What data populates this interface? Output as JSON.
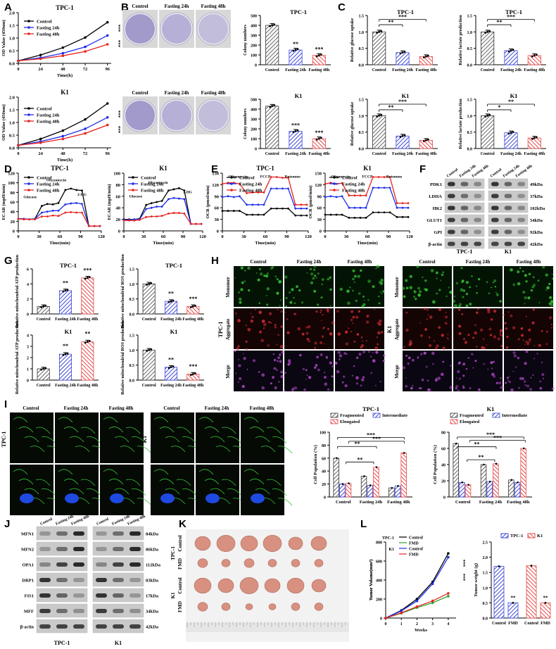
{
  "panels": {
    "A": "A",
    "B": "B",
    "C": "C",
    "D": "D",
    "E": "E",
    "F": "F",
    "G": "G",
    "H": "H",
    "I": "I",
    "J": "J",
    "K": "K",
    "L": "L"
  },
  "groups": [
    "Control",
    "Fasting 24h",
    "Fasting 48h"
  ],
  "cells": [
    "TPC-1",
    "K1"
  ],
  "colors": {
    "control": "#000000",
    "f24": "#1f2ee8",
    "f48": "#e8231f",
    "bar_control": "#9a9a9a",
    "bar_f24": "#3f49d9",
    "bar_f48": "#e64a4a",
    "fmd": "#2aa52a"
  },
  "sig": {
    "s2": "**",
    "s3": "***",
    "s1": "*"
  },
  "a_ylabel": "OD Value (450nm)",
  "a_xlabel": "Time(h)",
  "b_ylabel": "Colony numbers",
  "c_ylabel1": "Relative glucose uptake",
  "c_ylabel2": "Relative lactate production",
  "d_ylabel": "ECAR (mpH/min)",
  "d_xlabel": "Time(min)",
  "d_inj": [
    "Glucose",
    "Olycomycin",
    "2-DG"
  ],
  "d_inj_k1": [
    "Glucose",
    "Olycomycin",
    "2-DG"
  ],
  "e_ylabel": "OCR (pmol/min)",
  "e_xlabel": "Time(min)",
  "e_inj": [
    "Oligomycin",
    "FCCP",
    "Rotenone"
  ],
  "g_ylabel1": "Relative mitochondrial ATP production",
  "g_ylabel2": "Relative mitochondrial ROS production",
  "h_rows": [
    "Monomer",
    "Aggregate",
    "Merge"
  ],
  "i_ylabel": "Cell Population (%)",
  "i_legend": [
    "Fragmented",
    "Intermediate",
    "Elongated"
  ],
  "f_proteins": [
    "PDK1",
    "LDHA",
    "HK2",
    "GLUT1",
    "GPI",
    "β-actin"
  ],
  "f_kda": [
    "49kDa",
    "37kDa",
    "102kDa",
    "54kDa",
    "92kDa",
    "42kDa"
  ],
  "j_proteins": [
    "MFN1",
    "MFN2",
    "OPA1",
    "DRP1",
    "FIS1",
    "MFF",
    "β-actin"
  ],
  "j_kda": [
    "84kDa",
    "86kDa",
    "112kDa",
    "83kDa",
    "17kDa",
    "34kDa",
    "42kDa"
  ],
  "k_labels": {
    "tpc": "TPC-1",
    "k1": "K1",
    "control": "Control",
    "fmd": "FMD"
  },
  "l_legend": {
    "tpc": "TPC-1",
    "k1": "K1",
    "control": "Control",
    "fmd": "FMD"
  },
  "l_ylabel1": "Tumor Volume(mm³)",
  "l_xlabel": "Weeks",
  "l_ylabel2": "Tumor weight (g)",
  "chart_data": [
    {
      "id": "A-TPC1",
      "type": "line",
      "title": "TPC-1",
      "xlabel": "Time(h)",
      "ylabel": "OD Value (450nm)",
      "x": [
        0,
        24,
        48,
        72,
        96
      ],
      "xlim": [
        0,
        100
      ],
      "ylim": [
        0,
        2.0
      ],
      "yticks": [
        0.0,
        0.5,
        1.0,
        1.5,
        2.0
      ],
      "series": [
        {
          "name": "Control",
          "values": [
            0.1,
            0.33,
            0.62,
            1.02,
            1.62
          ]
        },
        {
          "name": "Fasting 24h",
          "values": [
            0.1,
            0.22,
            0.4,
            0.65,
            1.1
          ]
        },
        {
          "name": "Fasting 48h",
          "values": [
            0.1,
            0.18,
            0.3,
            0.47,
            0.75
          ]
        }
      ]
    },
    {
      "id": "A-K1",
      "type": "line",
      "title": "K1",
      "xlabel": "Time(h)",
      "ylabel": "OD Value (450nm)",
      "x": [
        0,
        24,
        48,
        72,
        96
      ],
      "xlim": [
        0,
        100
      ],
      "ylim": [
        0,
        2.0
      ],
      "yticks": [
        0.0,
        0.5,
        1.0,
        1.5,
        2.0
      ],
      "series": [
        {
          "name": "Control",
          "values": [
            0.1,
            0.35,
            0.68,
            1.12,
            1.75
          ]
        },
        {
          "name": "Fasting 24h",
          "values": [
            0.1,
            0.25,
            0.46,
            0.75,
            1.2
          ]
        },
        {
          "name": "Fasting 48h",
          "values": [
            0.1,
            0.2,
            0.35,
            0.57,
            0.9
          ]
        }
      ]
    },
    {
      "id": "B-TPC1",
      "type": "bar",
      "title": "TPC-1",
      "ylabel": "Colony numbers",
      "categories": [
        "Control",
        "Fasting 24h",
        "Fasting 48h"
      ],
      "values": [
        400,
        150,
        95
      ],
      "ylim": [
        0,
        500
      ],
      "yticks": [
        0,
        100,
        200,
        300,
        400,
        500
      ]
    },
    {
      "id": "B-K1",
      "type": "bar",
      "title": "K1",
      "ylabel": "Colony numbers",
      "categories": [
        "Control",
        "Fasting 24h",
        "Fasting 48h"
      ],
      "values": [
        430,
        175,
        100
      ],
      "ylim": [
        0,
        500
      ],
      "yticks": [
        0,
        100,
        200,
        300,
        400,
        500
      ]
    },
    {
      "id": "C-TPC1-glu",
      "type": "bar",
      "title": "TPC-1",
      "ylabel": "Relative glucose uptake",
      "categories": [
        "Control",
        "Fasting 24h",
        "Fasting 48h"
      ],
      "values": [
        1.0,
        0.37,
        0.25
      ],
      "ylim": [
        0,
        1.5
      ],
      "yticks": [
        0.0,
        0.5,
        1.0,
        1.5
      ]
    },
    {
      "id": "C-TPC1-lac",
      "type": "bar",
      "title": "TPC-1",
      "ylabel": "Relative lactate production",
      "categories": [
        "Control",
        "Fasting 24h",
        "Fasting 48h"
      ],
      "values": [
        1.0,
        0.43,
        0.28
      ],
      "ylim": [
        0,
        1.5
      ],
      "yticks": [
        0.0,
        0.5,
        1.0,
        1.5
      ]
    },
    {
      "id": "C-K1-glu",
      "type": "bar",
      "title": "K1",
      "ylabel": "Relative glucose uptake",
      "categories": [
        "Control",
        "Fasting 24h",
        "Fasting 48h"
      ],
      "values": [
        1.0,
        0.38,
        0.25
      ],
      "ylim": [
        0,
        1.5
      ],
      "yticks": [
        0.0,
        0.5,
        1.0,
        1.5
      ]
    },
    {
      "id": "C-K1-lac",
      "type": "bar",
      "title": "K1",
      "ylabel": "Relative lactate production",
      "categories": [
        "Control",
        "Fasting 24h",
        "Fasting 48h"
      ],
      "values": [
        1.0,
        0.48,
        0.32
      ],
      "ylim": [
        0,
        1.5
      ],
      "yticks": [
        0.0,
        0.5,
        1.0,
        1.5
      ]
    },
    {
      "id": "D-TPC1",
      "type": "line",
      "title": "TPC-1",
      "xlabel": "Time(min)",
      "ylabel": "ECAR (mpH/min)",
      "x": [
        0,
        8,
        16,
        24,
        34,
        42,
        50,
        58,
        68,
        76,
        84,
        92,
        102,
        110,
        118
      ],
      "xlim": [
        0,
        120
      ],
      "ylim": [
        0,
        120
      ],
      "yticks": [
        0,
        20,
        40,
        60,
        80,
        100,
        120
      ],
      "series": [
        {
          "name": "Control",
          "values": [
            25,
            25,
            24,
            25,
            52,
            56,
            55,
            58,
            85,
            88,
            85,
            84,
            10,
            10,
            10
          ]
        },
        {
          "name": "Fasting 24h",
          "values": [
            25,
            25,
            24,
            25,
            38,
            40,
            42,
            42,
            55,
            57,
            58,
            56,
            10,
            10,
            10
          ]
        },
        {
          "name": "Fasting 48h",
          "values": [
            25,
            24,
            24,
            24,
            30,
            30,
            32,
            31,
            38,
            39,
            38,
            38,
            10,
            10,
            10
          ]
        }
      ]
    },
    {
      "id": "D-K1",
      "type": "line",
      "title": "K1",
      "xlabel": "Time(min)",
      "ylabel": "ECAR (mpH/min)",
      "x": [
        0,
        8,
        16,
        24,
        34,
        42,
        50,
        58,
        68,
        76,
        84,
        92,
        102,
        110,
        118
      ],
      "xlim": [
        0,
        120
      ],
      "ylim": [
        0,
        100
      ],
      "yticks": [
        0,
        20,
        40,
        60,
        80,
        100
      ],
      "series": [
        {
          "name": "Control",
          "values": [
            20,
            20,
            20,
            21,
            45,
            48,
            50,
            52,
            70,
            72,
            74,
            70,
            12,
            12,
            12
          ]
        },
        {
          "name": "Fasting 24h",
          "values": [
            19,
            19,
            20,
            20,
            38,
            40,
            42,
            42,
            55,
            57,
            56,
            55,
            12,
            12,
            12
          ]
        },
        {
          "name": "Fasting 48h",
          "values": [
            18,
            18,
            18,
            19,
            24,
            25,
            25,
            26,
            30,
            31,
            31,
            30,
            12,
            12,
            12
          ]
        }
      ]
    },
    {
      "id": "E-TPC1",
      "type": "line",
      "title": "TPC-1",
      "xlabel": "Time(min)",
      "ylabel": "OCR (pmol/min)",
      "x": [
        0,
        8,
        16,
        24,
        34,
        42,
        50,
        58,
        68,
        76,
        84,
        92,
        102,
        110,
        118
      ],
      "xlim": [
        0,
        120
      ],
      "ylim": [
        0,
        150
      ],
      "yticks": [
        0,
        30,
        60,
        90,
        120,
        150
      ],
      "series": [
        {
          "name": "Control",
          "values": [
            52,
            52,
            52,
            52,
            42,
            42,
            42,
            42,
            58,
            58,
            58,
            58,
            40,
            40,
            40
          ]
        },
        {
          "name": "Fasting 24h",
          "values": [
            88,
            90,
            88,
            90,
            68,
            68,
            68,
            68,
            110,
            110,
            110,
            110,
            58,
            58,
            58
          ]
        },
        {
          "name": "Fasting 48h",
          "values": [
            122,
            125,
            125,
            122,
            98,
            100,
            100,
            100,
            140,
            140,
            138,
            138,
            68,
            68,
            68
          ]
        }
      ]
    },
    {
      "id": "E-K1",
      "type": "line",
      "title": "K1",
      "xlabel": "Time(min)",
      "ylabel": "OCR (pmol/min)",
      "x": [
        0,
        8,
        16,
        24,
        34,
        42,
        50,
        58,
        68,
        76,
        84,
        92,
        102,
        110,
        118
      ],
      "xlim": [
        0,
        120
      ],
      "ylim": [
        0,
        150
      ],
      "yticks": [
        0,
        30,
        60,
        90,
        120,
        150
      ],
      "series": [
        {
          "name": "Control",
          "values": [
            42,
            42,
            42,
            42,
            34,
            34,
            34,
            34,
            48,
            48,
            48,
            48,
            36,
            36,
            36
          ]
        },
        {
          "name": "Fasting 24h",
          "values": [
            88,
            90,
            88,
            90,
            60,
            60,
            60,
            60,
            112,
            112,
            112,
            112,
            60,
            60,
            60
          ]
        },
        {
          "name": "Fasting 48h",
          "values": [
            122,
            125,
            122,
            124,
            92,
            92,
            92,
            92,
            140,
            140,
            140,
            140,
            72,
            72,
            72
          ]
        }
      ]
    },
    {
      "id": "G-TPC1-ATP",
      "type": "bar",
      "title": "TPC-1",
      "ylabel": "Relative mitochondrial ATP production",
      "categories": [
        "Control",
        "Fasting 24h",
        "Fasting 48h"
      ],
      "values": [
        1.0,
        3.1,
        4.8
      ],
      "ylim": [
        0,
        6
      ],
      "yticks": [
        0,
        2,
        4,
        6
      ]
    },
    {
      "id": "G-TPC1-ROS",
      "type": "bar",
      "title": "TPC-1",
      "ylabel": "Relative mitochondrial ROS production",
      "categories": [
        "Control",
        "Fasting 24h",
        "Fasting 48h"
      ],
      "values": [
        1.0,
        0.42,
        0.25
      ],
      "ylim": [
        0,
        1.5
      ],
      "yticks": [
        0.0,
        0.5,
        1.0,
        1.5
      ]
    },
    {
      "id": "G-K1-ATP",
      "type": "bar",
      "title": "K1",
      "ylabel": "Relative mitochondrial ATP production",
      "categories": [
        "Control",
        "Fasting 24h",
        "Fasting 48h"
      ],
      "values": [
        1.0,
        2.3,
        3.4
      ],
      "ylim": [
        0,
        4
      ],
      "yticks": [
        0,
        1,
        2,
        3,
        4
      ]
    },
    {
      "id": "G-K1-ROS",
      "type": "bar",
      "title": "K1",
      "ylabel": "Relative mitochondrial ROS production",
      "categories": [
        "Control",
        "Fasting 24h",
        "Fasting 48h"
      ],
      "values": [
        1.0,
        0.43,
        0.2
      ],
      "ylim": [
        0,
        1.5
      ],
      "yticks": [
        0.0,
        0.5,
        1.0,
        1.5
      ]
    },
    {
      "id": "I-TPC1",
      "type": "bar",
      "title": "TPC-1",
      "ylabel": "Cell Population (%)",
      "categories": [
        "Control",
        "Fasting 24h",
        "Fasting 48h"
      ],
      "ylim": [
        0,
        100
      ],
      "yticks": [
        0,
        20,
        40,
        60,
        80,
        100
      ],
      "series": [
        {
          "name": "Fragmented",
          "values": [
            60,
            32,
            14
          ]
        },
        {
          "name": "Intermediate",
          "values": [
            20,
            18,
            17
          ]
        },
        {
          "name": "Elongated",
          "values": [
            21,
            46,
            68
          ]
        }
      ]
    },
    {
      "id": "I-K1",
      "type": "bar",
      "title": "K1",
      "ylabel": "Cell Population (%)",
      "categories": [
        "Control",
        "Fasting 24h",
        "Fasting 48h"
      ],
      "ylim": [
        0,
        80
      ],
      "yticks": [
        0,
        20,
        40,
        60,
        80
      ],
      "series": [
        {
          "name": "Fragmented",
          "values": [
            66,
            40,
            21
          ]
        },
        {
          "name": "Intermediate",
          "values": [
            18,
            19,
            18
          ]
        },
        {
          "name": "Elongated",
          "values": [
            15,
            41,
            60
          ]
        }
      ]
    },
    {
      "id": "L-volume",
      "type": "line",
      "xlabel": "Weeks",
      "ylabel": "Tumor Volume(mm³)",
      "x": [
        0,
        1,
        2,
        3,
        4
      ],
      "xlim": [
        0,
        4.5
      ],
      "ylim": [
        0,
        800
      ],
      "yticks": [
        0,
        200,
        400,
        600,
        800
      ],
      "series": [
        {
          "name": "TPC-1 Control",
          "values": [
            0,
            80,
            200,
            380,
            680
          ]
        },
        {
          "name": "TPC-1 FMD",
          "values": [
            0,
            50,
            110,
            160,
            230
          ]
        },
        {
          "name": "K1 Control",
          "values": [
            0,
            75,
            180,
            360,
            640
          ]
        },
        {
          "name": "K1 FMD",
          "values": [
            0,
            55,
            120,
            180,
            260
          ]
        }
      ]
    },
    {
      "id": "L-weight",
      "type": "bar",
      "ylabel": "Tumor weight (g)",
      "categories": [
        "Control",
        "FMD",
        "Control",
        "FMD"
      ],
      "values": [
        1.7,
        0.5,
        1.72,
        0.5
      ],
      "ylim": [
        0,
        2.5
      ],
      "yticks": [
        0.0,
        0.5,
        1.0,
        1.5,
        2.0,
        2.5
      ]
    }
  ]
}
